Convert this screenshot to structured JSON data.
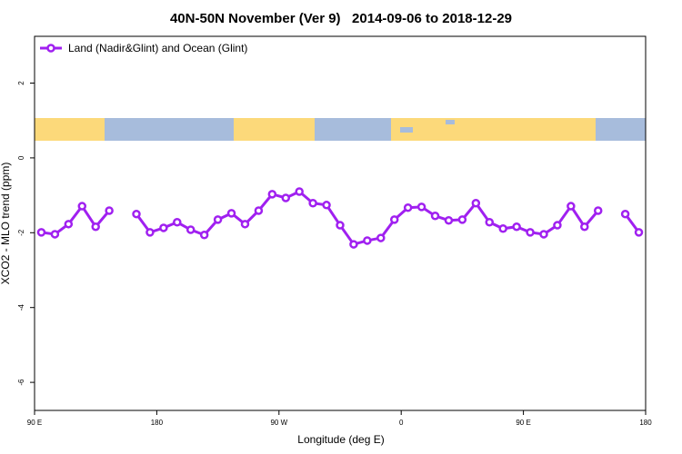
{
  "chart_data": {
    "type": "line",
    "title": "40N-50N November (Ver 9)   2014-09-06 to 2018-12-29",
    "x_label": "Longitude (deg E)",
    "y_label": "XCO2 - MLO trend (ppm)",
    "x": [
      95,
      105,
      115,
      125,
      135,
      145,
      155,
      165,
      175,
      185,
      195,
      205,
      215,
      225,
      235,
      245,
      255,
      265,
      275,
      285,
      295,
      305,
      315,
      325,
      335,
      345,
      355,
      365,
      375,
      385,
      395,
      405,
      415,
      425,
      435,
      445,
      455,
      465,
      475,
      485,
      495,
      505,
      515,
      525,
      535
    ],
    "series": [
      {
        "name": "Land (Nadir&Glint) and Ocean (Glint)",
        "color": "#a020f0",
        "values": [
          -1.99,
          -2.04,
          -1.77,
          -1.29,
          -1.84,
          -1.41,
          null,
          -1.5,
          -1.99,
          -1.87,
          -1.72,
          -1.92,
          -2.06,
          -1.65,
          -1.48,
          -1.77,
          -1.41,
          -0.97,
          -1.07,
          -0.9,
          -1.21,
          -1.26,
          -1.8,
          -2.31,
          -2.21,
          -2.14,
          -1.65,
          -1.33,
          -1.31,
          -1.55,
          -1.67,
          -1.65,
          -1.21,
          -1.72,
          -1.89,
          -1.84,
          -1.99,
          -2.04,
          -1.8,
          -1.29,
          -1.84,
          -1.41,
          null,
          -1.5,
          -1.99
        ]
      }
    ],
    "xlim": [
      90,
      540
    ],
    "xticks": [
      {
        "value": 90,
        "label": "90 E"
      },
      180,
      {
        "value": 270,
        "label": "90 W"
      },
      {
        "value": 360,
        "label": "0"
      },
      {
        "value": 450,
        "label": "90 E"
      },
      {
        "value": 540,
        "label": "180"
      }
    ],
    "ylim": [
      -6.75,
      3.25
    ],
    "yticks": [
      -6,
      -4,
      -2,
      0,
      2
    ],
    "legend": "top-left"
  }
}
